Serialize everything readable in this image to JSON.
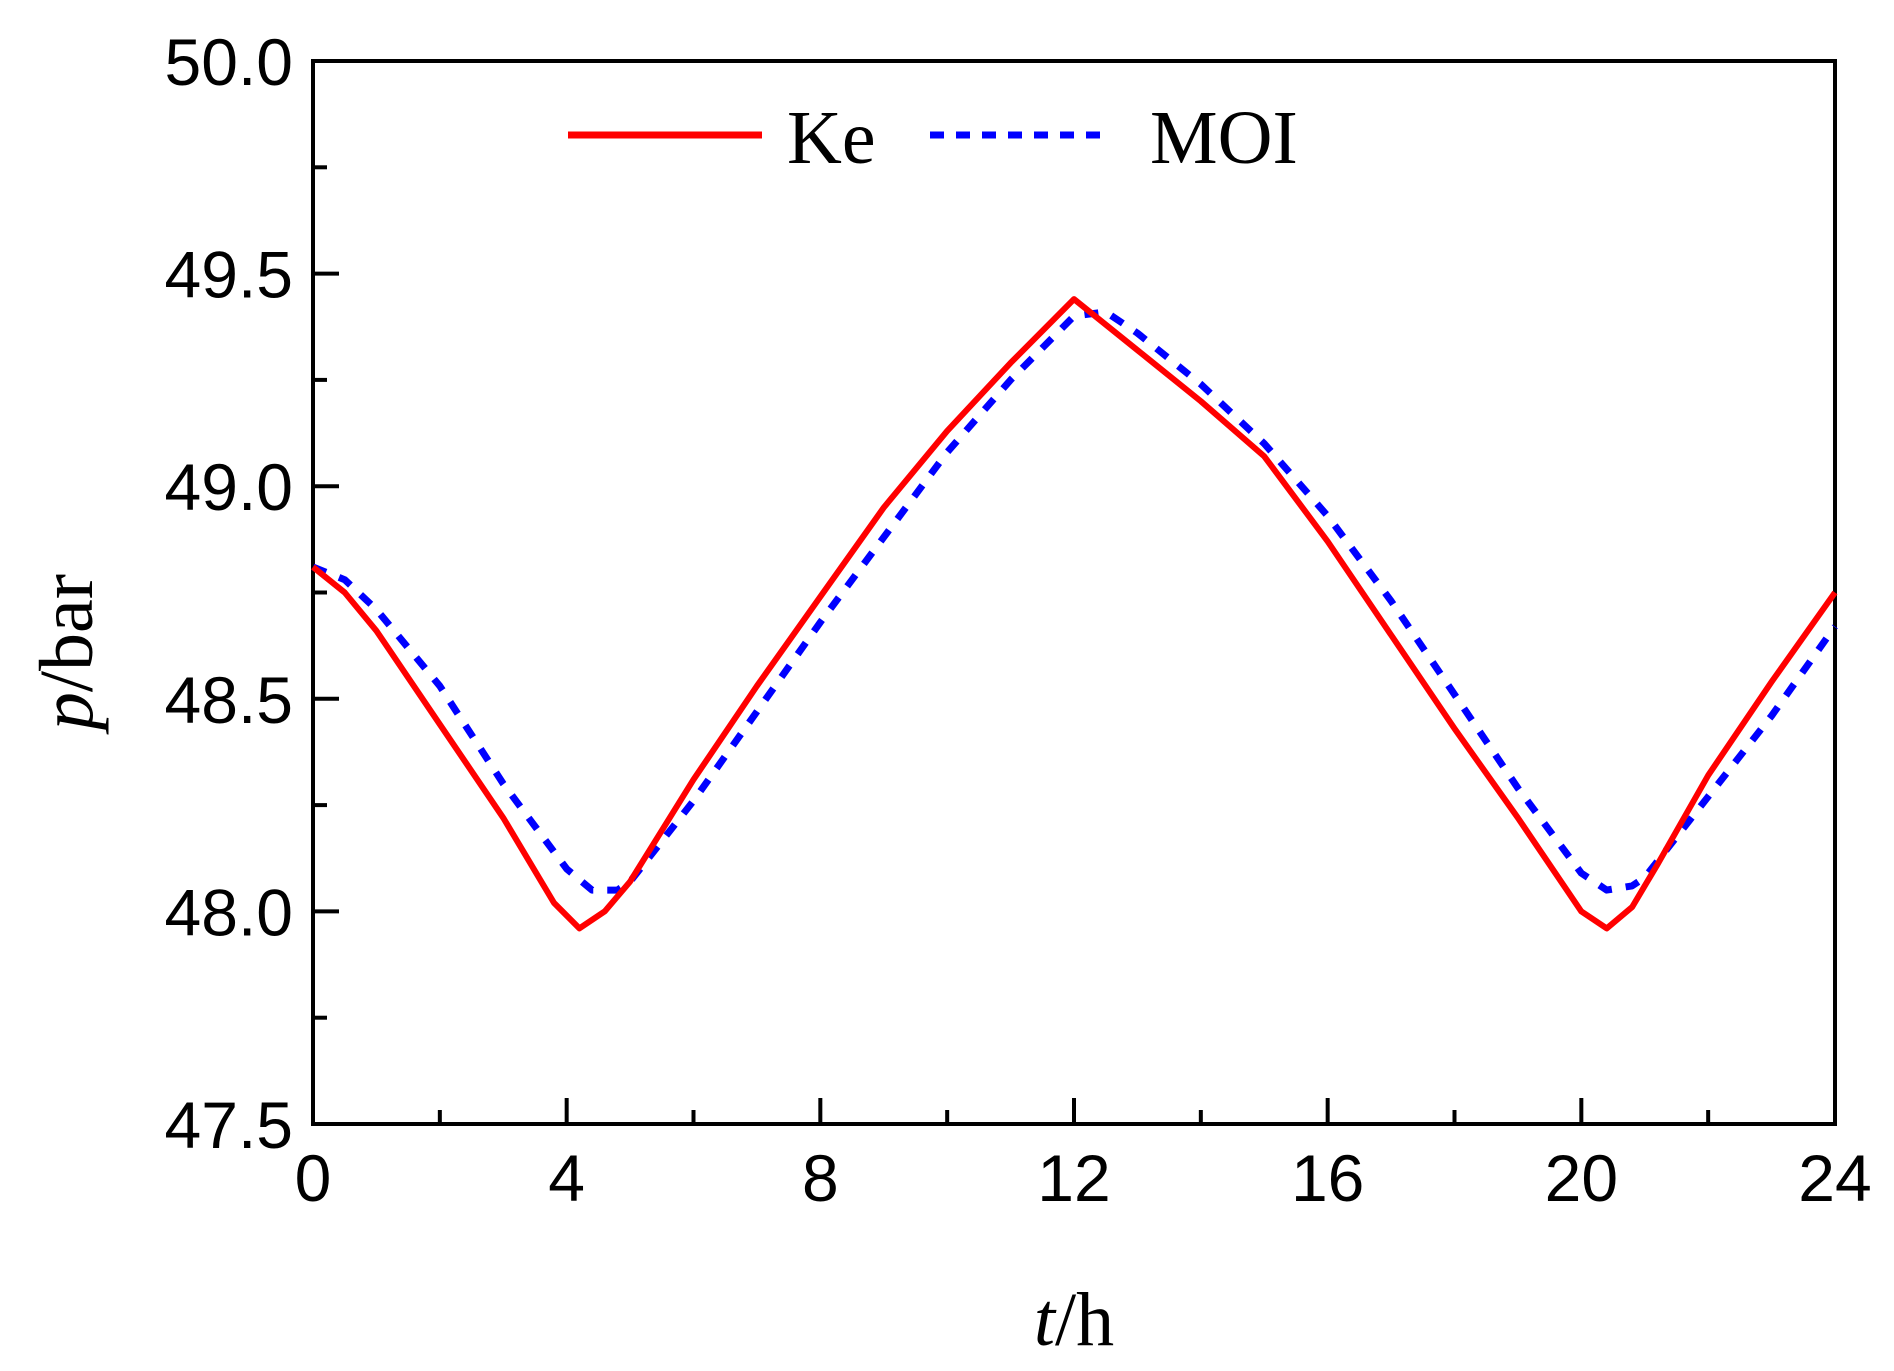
{
  "chart_data": {
    "type": "line",
    "title": "",
    "xlabel": {
      "var": "t",
      "unit": "/h"
    },
    "ylabel": {
      "var": "p",
      "unit": "/bar"
    },
    "xlim": [
      0,
      24
    ],
    "ylim": [
      47.5,
      50.0
    ],
    "xticks": [
      0,
      4,
      8,
      12,
      16,
      20,
      24
    ],
    "xtick_labels": [
      "0",
      "4",
      "8",
      "12",
      "16",
      "20",
      "24"
    ],
    "xminor": [
      2,
      6,
      10,
      14,
      18,
      22
    ],
    "yticks": [
      47.5,
      48.0,
      48.5,
      49.0,
      49.5,
      50.0
    ],
    "ytick_labels": [
      "47.5",
      "48.0",
      "48.5",
      "49.0",
      "49.5",
      "50.0"
    ],
    "yminor": [
      47.75,
      48.25,
      48.75,
      49.25,
      49.75
    ],
    "grid": false,
    "legend_position": "top",
    "series": [
      {
        "name": "Ke",
        "color": "#ff0000",
        "style": "solid",
        "x": [
          0,
          0.5,
          1,
          2,
          3,
          3.8,
          4.2,
          4.6,
          5,
          6,
          7,
          8,
          9,
          10,
          11,
          12,
          13,
          14,
          15,
          16,
          17,
          18,
          19,
          20,
          20.4,
          20.8,
          21.2,
          22,
          23,
          24
        ],
        "y": [
          48.81,
          48.75,
          48.66,
          48.44,
          48.22,
          48.02,
          47.96,
          48.0,
          48.07,
          48.31,
          48.53,
          48.74,
          48.95,
          49.13,
          49.29,
          49.44,
          49.32,
          49.2,
          49.07,
          48.87,
          48.65,
          48.43,
          48.22,
          48.0,
          47.96,
          48.01,
          48.11,
          48.32,
          48.54,
          48.75
        ]
      },
      {
        "name": "MOI",
        "color": "#0000ff",
        "style": "dashed",
        "x": [
          0,
          0.5,
          1,
          2,
          3,
          4,
          4.4,
          4.8,
          5,
          6,
          7,
          8,
          9,
          10,
          11,
          12,
          12.5,
          13,
          14,
          15,
          16,
          17,
          18,
          19,
          20,
          20.4,
          20.8,
          21,
          22,
          23,
          24
        ],
        "y": [
          48.81,
          48.78,
          48.71,
          48.53,
          48.3,
          48.1,
          48.05,
          48.05,
          48.07,
          48.26,
          48.47,
          48.68,
          48.88,
          49.08,
          49.25,
          49.4,
          49.41,
          49.36,
          49.24,
          49.1,
          48.93,
          48.73,
          48.51,
          48.29,
          48.09,
          48.05,
          48.06,
          48.08,
          48.27,
          48.46,
          48.67
        ]
      }
    ]
  }
}
